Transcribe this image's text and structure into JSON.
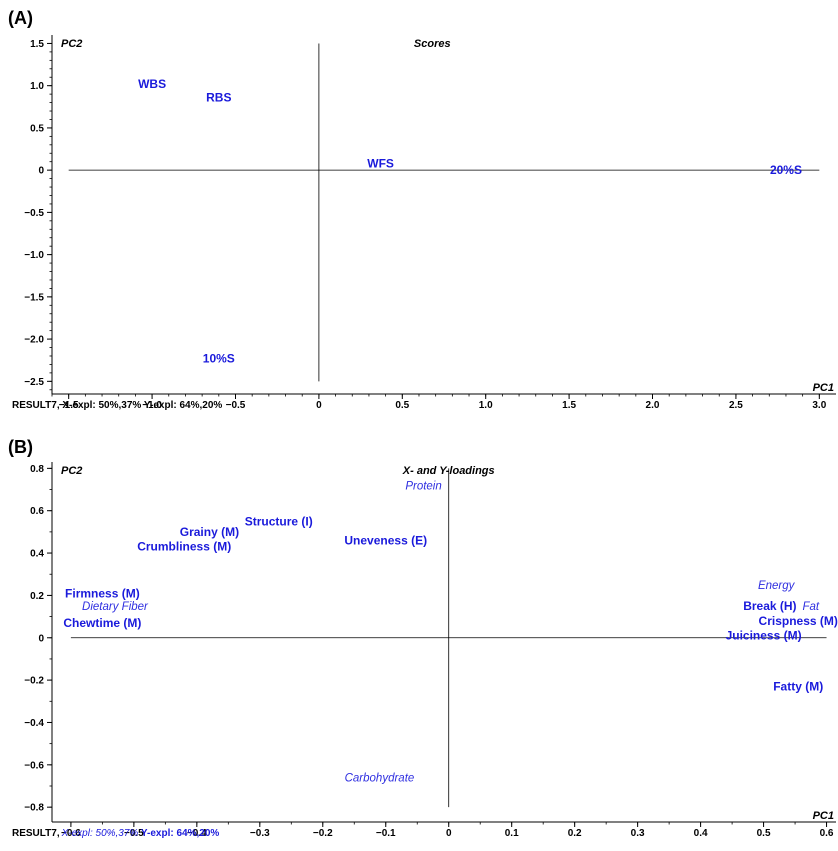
{
  "chart_data": [
    {
      "panel": "(A)",
      "type": "scatter",
      "title": "Scores",
      "xlabel": "PC1",
      "ylabel": "PC2",
      "xlim": [
        -1.6,
        3.1
      ],
      "ylim": [
        -2.65,
        1.6
      ],
      "xticks": [
        -1.5,
        -1.0,
        -0.5,
        0,
        0.5,
        1.0,
        1.5,
        2.0,
        2.5,
        3.0
      ],
      "xtick_labels": [
        "−1.5",
        "−1.0",
        "−0.5",
        "0",
        "0.5",
        "1.0",
        "1.5",
        "2.0",
        "2.5",
        "3.0"
      ],
      "yticks": [
        1.5,
        1.0,
        0.5,
        0,
        -0.5,
        -1.0,
        -1.5,
        -2.0,
        -2.5
      ],
      "ytick_labels": [
        "1.5",
        "1.0",
        "0.5",
        "0",
        "−0.5",
        "−1.0",
        "−1.5",
        "−2.0",
        "−2.5"
      ],
      "crosshair": {
        "h_from": -1.5,
        "h_to": 3.0,
        "v_from": -2.5,
        "v_to": 1.5
      },
      "points": [
        {
          "label": "WBS",
          "x": -1.0,
          "y": 1.02,
          "style": "bold"
        },
        {
          "label": "RBS",
          "x": -0.6,
          "y": 0.86,
          "style": "bold"
        },
        {
          "label": "WFS",
          "x": 0.37,
          "y": 0.08,
          "style": "bold"
        },
        {
          "label": "20%S",
          "x": 2.8,
          "y": 0.0,
          "style": "bold"
        },
        {
          "label": "10%S",
          "x": -0.6,
          "y": -2.23,
          "style": "bold"
        }
      ],
      "footer": [
        {
          "text": "RESULT7, X-expl: 50%,37%  Y-expl: 64%,20%",
          "style": "black"
        }
      ]
    },
    {
      "panel": "(B)",
      "type": "scatter",
      "title": "X- and Y-loadings",
      "xlabel": "PC1",
      "ylabel": "PC2",
      "xlim": [
        -0.63,
        0.615
      ],
      "ylim": [
        -0.87,
        0.83
      ],
      "xticks": [
        -0.6,
        -0.5,
        -0.4,
        -0.3,
        -0.2,
        -0.1,
        0,
        0.1,
        0.2,
        0.3,
        0.4,
        0.5,
        0.6
      ],
      "xtick_labels": [
        "−0.6",
        "−0.5",
        "−0.4",
        "−0.3",
        "−0.2",
        "−0.1",
        "0",
        "0.1",
        "0.2",
        "0.3",
        "0.4",
        "0.5",
        "0.6"
      ],
      "yticks": [
        0.8,
        0.6,
        0.4,
        0.2,
        0,
        -0.2,
        -0.4,
        -0.6,
        -0.8
      ],
      "ytick_labels": [
        "0.8",
        "0.6",
        "0.4",
        "0.2",
        "0",
        "−0.2",
        "−0.4",
        "−0.6",
        "−0.8"
      ],
      "crosshair": {
        "h_from": -0.6,
        "h_to": 0.6,
        "v_from": -0.8,
        "v_to": 0.8
      },
      "points": [
        {
          "label": "Protein",
          "x": -0.04,
          "y": 0.72,
          "style": "italic"
        },
        {
          "label": "Structure (I)",
          "x": -0.27,
          "y": 0.55,
          "style": "bold"
        },
        {
          "label": "Grainy (M)",
          "x": -0.38,
          "y": 0.5,
          "style": "bold"
        },
        {
          "label": "Crumbliness (M)",
          "x": -0.42,
          "y": 0.43,
          "style": "bold"
        },
        {
          "label": "Uneveness (E)",
          "x": -0.1,
          "y": 0.46,
          "style": "bold"
        },
        {
          "label": "Firmness (M)",
          "x": -0.55,
          "y": 0.21,
          "style": "bold"
        },
        {
          "label": "Dietary Fiber",
          "x": -0.53,
          "y": 0.15,
          "style": "italic"
        },
        {
          "label": "Chewtime (M)",
          "x": -0.55,
          "y": 0.07,
          "style": "bold"
        },
        {
          "label": "Energy",
          "x": 0.52,
          "y": 0.25,
          "style": "italic"
        },
        {
          "label": "Break (H)",
          "x": 0.51,
          "y": 0.15,
          "style": "bold"
        },
        {
          "label": "Fat",
          "x": 0.575,
          "y": 0.15,
          "style": "italic"
        },
        {
          "label": "Crispness (M)",
          "x": 0.555,
          "y": 0.08,
          "style": "bold"
        },
        {
          "label": "Juiciness (M)",
          "x": 0.5,
          "y": 0.01,
          "style": "bold"
        },
        {
          "label": "Fatty (M)",
          "x": 0.555,
          "y": -0.23,
          "style": "bold"
        },
        {
          "label": "Carbohydrate",
          "x": -0.11,
          "y": -0.66,
          "style": "italic"
        }
      ],
      "footer": [
        {
          "text": "RESULT7,",
          "style": "black"
        },
        {
          "text": "X-expl: 50%,37%",
          "style": "blue-italic"
        },
        {
          "text": " Y-expl: 64%,20%",
          "style": "blue-bold"
        }
      ]
    }
  ]
}
